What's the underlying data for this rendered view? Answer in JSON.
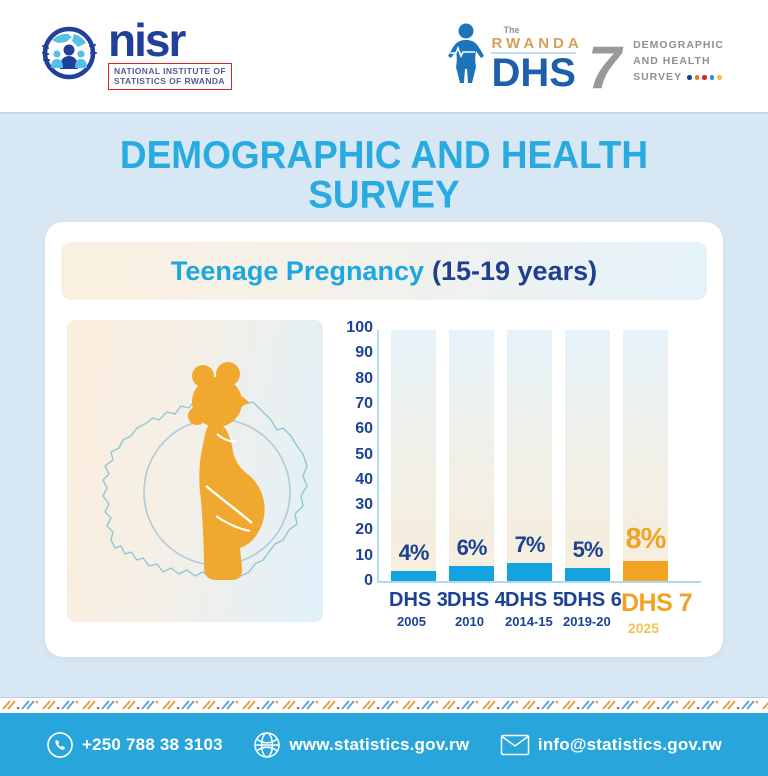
{
  "header": {
    "nisr_logo": {
      "acronym": "nisr",
      "org_line1": "NATIONAL INSTITUTE OF",
      "org_line2": "STATISTICS OF RWANDA"
    },
    "dhs_logo": {
      "the": "The",
      "country": "RWANDA",
      "acronym": "DHS",
      "number": "7",
      "line1": "DEMOGRAPHIC",
      "line2": "AND HEALTH",
      "line3": "SURVEY",
      "dot_colors": [
        "#1B3F94",
        "#E87722",
        "#D22630",
        "#1C9AD6",
        "#F2C24B"
      ]
    }
  },
  "banner": {
    "title_line1": "DEMOGRAPHIC AND HEALTH",
    "title_line2": "SURVEY"
  },
  "card": {
    "subtitle_main": "Teenage Pregnancy",
    "subtitle_range": "(15-19 years)"
  },
  "chart_data": {
    "type": "bar",
    "title": "Teenage Pregnancy (15-19 years)",
    "categories": [
      "DHS 3",
      "DHS 4",
      "DHS 5",
      "DHS 6",
      "DHS 7"
    ],
    "years": [
      "2005",
      "2010",
      "2014-15",
      "2019-20",
      "2025"
    ],
    "values": [
      4,
      6,
      7,
      5,
      8
    ],
    "labels": [
      "4%",
      "6%",
      "7%",
      "5%",
      "8%"
    ],
    "ylabel": "",
    "xlabel": "",
    "ylim": [
      0,
      100
    ],
    "yticks": [
      0,
      10,
      20,
      30,
      40,
      50,
      60,
      70,
      80,
      90,
      100
    ],
    "grid": false,
    "legend": "none",
    "highlight_index": 4,
    "bar_color": "#12A3E0",
    "highlight_color": "#F0A324",
    "value_label_color": "#1C4195"
  },
  "footer": {
    "phone": "+250 788 38 3103",
    "website": "www.statistics.gov.rw",
    "email": "info@statistics.gov.rw"
  },
  "colors": {
    "band_bg": "#D7E8F4",
    "title_blue": "#29ABE2",
    "navy": "#1C4195",
    "orange": "#F0A324",
    "footer_bg": "#28A5DB",
    "nisr_blue": "#21409A",
    "dhs_gray": "#8E9093",
    "rwanda_gold": "#D5A156"
  }
}
